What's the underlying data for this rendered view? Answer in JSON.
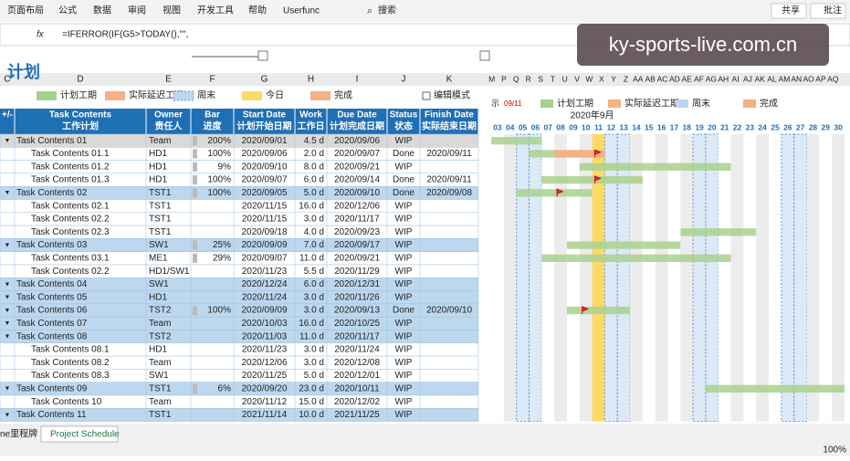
{
  "ribbon": {
    "tabs": [
      "页面布局",
      "公式",
      "数据",
      "审阅",
      "视图",
      "开发工具",
      "帮助",
      "Userfunc"
    ],
    "search": "搜索",
    "share": "共享",
    "comment": "批注"
  },
  "formula": {
    "fx": "fx",
    "text": "=IFERROR(IF(G5>TODAY(),\"\","
  },
  "watermark": "ky-sports-live.com.cn",
  "columns": [
    "C",
    "D",
    "E",
    "F",
    "G",
    "H",
    "I",
    "J",
    "K"
  ],
  "gantt_columns": [
    "M",
    "P",
    "Q",
    "R",
    "S",
    "T",
    "U",
    "V",
    "W",
    "X",
    "Y",
    "Z",
    "AA",
    "AB",
    "AC",
    "AD",
    "AE",
    "AF",
    "AG",
    "AH",
    "AI",
    "AJ",
    "AK",
    "AL",
    "AM",
    "AN",
    "AO",
    "AP",
    "AQ"
  ],
  "title": "计划",
  "legend": {
    "items": [
      "计划工期",
      "实际延迟工期",
      "周末",
      "今日",
      "完成"
    ],
    "edit_mode": "编辑模式"
  },
  "gantt_legend": {
    "today_label": "示",
    "today": "09/11",
    "items": [
      "计划工期",
      "实际延迟工期",
      "周末",
      "完成"
    ]
  },
  "table": {
    "headers": [
      [
        "+/-"
      ],
      [
        "Task Contents",
        "工作计划"
      ],
      [
        "Owner",
        "责任人"
      ],
      [
        "Bar",
        "进度"
      ],
      [
        "Start Date",
        "计划开始日期"
      ],
      [
        "Work",
        "工作日"
      ],
      [
        "Due Date",
        "计划完成日期"
      ],
      [
        "Status",
        "状态"
      ],
      [
        "Finish Date",
        "实际结束日期"
      ]
    ],
    "rows": [
      {
        "group": true,
        "cells": [
          "Task Contents 01",
          "Team",
          "200%",
          "2020/09/01",
          "4.5 d",
          "2020/09/06",
          "WIP",
          null
        ]
      },
      {
        "group": false,
        "cells": [
          "Task Contents 01.1",
          "HD1",
          "100%",
          "2020/09/06",
          "2.0 d",
          "2020/09/07",
          "Done",
          "2020/09/11"
        ]
      },
      {
        "group": false,
        "cells": [
          "Task Contents 01.2",
          "HD1",
          "9%",
          "2020/09/10",
          "8.0 d",
          "2020/09/21",
          "WIP",
          null
        ]
      },
      {
        "group": false,
        "cells": [
          "Task Contents 01.3",
          "HD1",
          "100%",
          "2020/09/07",
          "6.0 d",
          "2020/09/14",
          "Done",
          "2020/09/11"
        ]
      },
      {
        "group": true,
        "cells": [
          "Task Contents 02",
          "TST1",
          "100%",
          "2020/09/05",
          "5.0 d",
          "2020/09/10",
          "Done",
          "2020/09/08"
        ]
      },
      {
        "group": false,
        "cells": [
          "Task Contents 02.1",
          "TST1",
          null,
          "2020/11/15",
          "16.0 d",
          "2020/12/06",
          "WIP",
          null
        ]
      },
      {
        "group": false,
        "cells": [
          "Task Contents 02.2",
          "TST1",
          null,
          "2020/11/15",
          "3.0 d",
          "2020/11/17",
          "WIP",
          null
        ]
      },
      {
        "group": false,
        "cells": [
          "Task Contents 02.3",
          "TST1",
          null,
          "2020/09/18",
          "4.0 d",
          "2020/09/23",
          "WIP",
          null
        ]
      },
      {
        "group": true,
        "cells": [
          "Task Contents 03",
          "SW1",
          "25%",
          "2020/09/09",
          "7.0 d",
          "2020/09/17",
          "WIP",
          null
        ]
      },
      {
        "group": false,
        "cells": [
          "Task Contents 03.1",
          "ME1",
          "29%",
          "2020/09/07",
          "11.0 d",
          "2020/09/21",
          "WIP",
          null
        ]
      },
      {
        "group": false,
        "cells": [
          "Task Contents 02.2",
          "HD1/SW1",
          null,
          "2020/11/23",
          "5.5 d",
          "2020/11/29",
          "WIP",
          null
        ]
      },
      {
        "group": true,
        "cells": [
          "Task Contents 04",
          "SW1",
          null,
          "2020/12/24",
          "6.0 d",
          "2020/12/31",
          "WIP",
          null
        ]
      },
      {
        "group": true,
        "cells": [
          "Task Contents 05",
          "HD1",
          null,
          "2020/11/24",
          "3.0 d",
          "2020/11/26",
          "WIP",
          null
        ]
      },
      {
        "group": true,
        "cells": [
          "Task Contents 06",
          "TST2",
          "100%",
          "2020/09/09",
          "3.0 d",
          "2020/09/13",
          "Done",
          "2020/09/10"
        ]
      },
      {
        "group": true,
        "cells": [
          "Task Contents 07",
          "Team",
          null,
          "2020/10/03",
          "16.0 d",
          "2020/10/25",
          "WIP",
          null
        ]
      },
      {
        "group": true,
        "cells": [
          "Task Contents 08",
          "TST2",
          null,
          "2020/11/03",
          "11.0 d",
          "2020/11/17",
          "WIP",
          null
        ]
      },
      {
        "group": false,
        "cells": [
          "Task Contents 08.1",
          "HD1",
          null,
          "2020/11/23",
          "3.0 d",
          "2020/11/24",
          "WIP",
          null
        ]
      },
      {
        "group": false,
        "cells": [
          "Task Contents 08.2",
          "Team",
          null,
          "2020/12/06",
          "3.0 d",
          "2020/12/08",
          "WIP",
          null
        ]
      },
      {
        "group": false,
        "cells": [
          "Task Contents 08.3",
          "SW1",
          null,
          "2020/11/25",
          "5.0 d",
          "2020/12/01",
          "WIP",
          null
        ]
      },
      {
        "group": true,
        "cells": [
          "Task Contents 09",
          "TST1",
          "6%",
          "2020/09/20",
          "23.0 d",
          "2020/10/11",
          "WIP",
          null
        ]
      },
      {
        "group": false,
        "cells": [
          "Task Contents 10",
          "Team",
          null,
          "2020/11/12",
          "15.0 d",
          "2020/12/02",
          "WIP",
          null
        ]
      },
      {
        "group": true,
        "cells": [
          "Task Contents 11",
          "TST1",
          null,
          "2021/11/14",
          "10.0 d",
          "2021/11/25",
          "WIP",
          null
        ]
      }
    ]
  },
  "gantt": {
    "month": "2020年9月",
    "days": [
      "03",
      "04",
      "05",
      "06",
      "07",
      "08",
      "09",
      "10",
      "11",
      "12",
      "13",
      "14",
      "15",
      "16",
      "17",
      "18",
      "19",
      "20",
      "21",
      "22",
      "23",
      "24",
      "25",
      "26",
      "27",
      "28",
      "29",
      "30"
    ]
  },
  "sheets": [
    "ne里程牌",
    "Project Schedule"
  ],
  "zoom": "100%"
}
